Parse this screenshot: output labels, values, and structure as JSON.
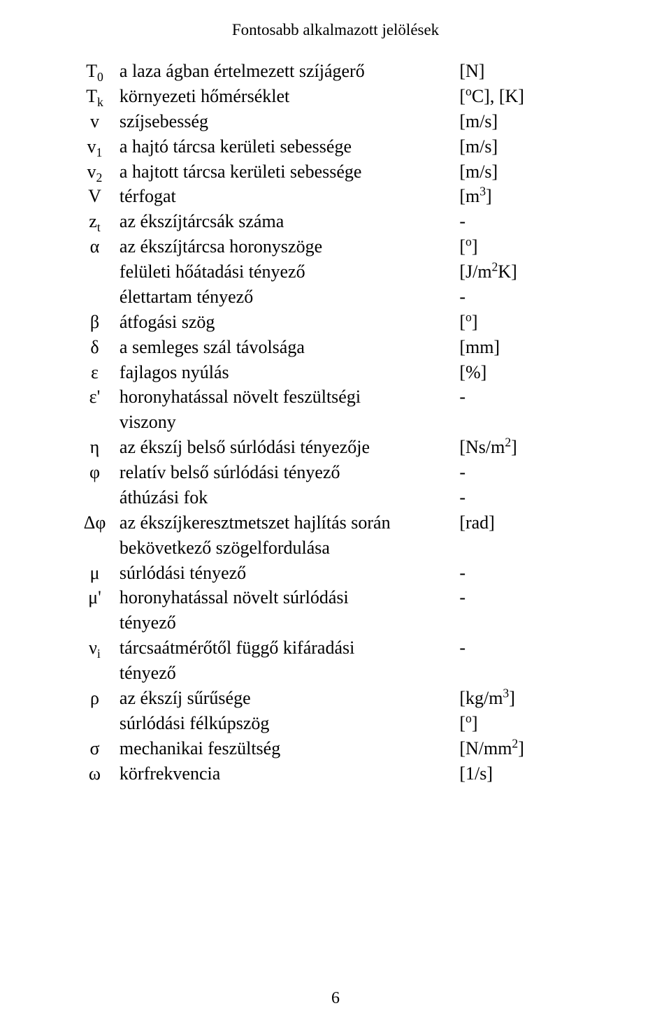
{
  "header": "Fontosabb alkalmazott jelölések",
  "page_number": "6",
  "rows": [
    {
      "sym_pre": "T",
      "sym_sub": "0",
      "sym_post": "",
      "desc": "a laza ágban értelmezett szíjágerő",
      "unit_html": "[N]"
    },
    {
      "sym_pre": "T",
      "sym_sub": "k",
      "sym_post": "",
      "desc": "környezeti hőmérséklet",
      "unit_html": "[<span class='sup'>o</span>C], [K]"
    },
    {
      "sym_pre": "v",
      "sym_sub": "",
      "sym_post": "",
      "desc": "szíjsebesség",
      "unit_html": "[m/s]"
    },
    {
      "sym_pre": "v",
      "sym_sub": "1",
      "sym_post": "",
      "desc": "a hajtó tárcsa kerületi sebessége",
      "unit_html": "[m/s]"
    },
    {
      "sym_pre": "v",
      "sym_sub": "2",
      "sym_post": "",
      "desc": "a hajtott tárcsa kerületi sebessége",
      "unit_html": "[m/s]"
    },
    {
      "sym_pre": "V",
      "sym_sub": "",
      "sym_post": "",
      "desc": "térfogat",
      "unit_html": "[m<span class='sup'>3</span>]"
    },
    {
      "sym_pre": "z",
      "sym_sub": "t",
      "sym_post": "",
      "desc": "az ékszíjtárcsák száma",
      "unit_html": "-"
    },
    {
      "sym_pre": "α",
      "sym_sub": "",
      "sym_post": "",
      "desc": "az ékszíjtárcsa horonyszöge",
      "unit_html": "[<span class='sup'>o</span>]"
    },
    {
      "sym_pre": "",
      "sym_sub": "",
      "sym_post": "",
      "desc": "felületi hőátadási tényező",
      "unit_html": "[J/m<span class='sup'>2</span>K]"
    },
    {
      "sym_pre": "",
      "sym_sub": "",
      "sym_post": "",
      "desc": "élettartam tényező",
      "unit_html": "-"
    },
    {
      "sym_pre": "β",
      "sym_sub": "",
      "sym_post": "",
      "desc": "átfogási szög",
      "unit_html": "[<span class='sup'>o</span>]"
    },
    {
      "sym_pre": "δ",
      "sym_sub": "",
      "sym_post": "",
      "desc": "a semleges szál távolsága",
      "unit_html": "[mm]"
    },
    {
      "sym_pre": "ε",
      "sym_sub": "",
      "sym_post": "",
      "desc": "fajlagos nyúlás",
      "unit_html": "[%]"
    },
    {
      "sym_pre": "ε'",
      "sym_sub": "",
      "sym_post": "",
      "desc": "horonyhatással növelt feszültségi",
      "unit_html": "-"
    },
    {
      "sym_pre": "",
      "sym_sub": "",
      "sym_post": "",
      "desc": "viszony",
      "unit_html": ""
    },
    {
      "sym_pre": "η",
      "sym_sub": "",
      "sym_post": "",
      "desc": "az ékszíj belső súrlódási tényezője",
      "unit_html": "[Ns/m<span class='sup'>2</span>]"
    },
    {
      "sym_pre": "φ",
      "sym_sub": "",
      "sym_post": "",
      "desc": "relatív belső súrlódási tényező",
      "unit_html": "-"
    },
    {
      "sym_pre": "",
      "sym_sub": "",
      "sym_post": "",
      "desc": "áthúzási fok",
      "unit_html": "-"
    },
    {
      "sym_pre": "Δφ",
      "sym_sub": "",
      "sym_post": "",
      "desc": "az ékszíjkeresztmetszet hajlítás során",
      "unit_html": "[rad]"
    },
    {
      "sym_pre": "",
      "sym_sub": "",
      "sym_post": "",
      "desc": "bekövetkező szögelfordulása",
      "unit_html": ""
    },
    {
      "sym_pre": "μ",
      "sym_sub": "",
      "sym_post": "",
      "desc": "súrlódási tényező",
      "unit_html": "-"
    },
    {
      "sym_pre": "μ'",
      "sym_sub": "",
      "sym_post": "",
      "desc": "horonyhatással növelt súrlódási",
      "unit_html": "-"
    },
    {
      "sym_pre": "",
      "sym_sub": "",
      "sym_post": "",
      "desc": "tényező",
      "unit_html": ""
    },
    {
      "sym_pre": "ν",
      "sym_sub": "i",
      "sym_post": "",
      "desc": "tárcsaátmérőtől függő kifáradási",
      "unit_html": "-"
    },
    {
      "sym_pre": "",
      "sym_sub": "",
      "sym_post": "",
      "desc": "tényező",
      "unit_html": ""
    },
    {
      "sym_pre": "ρ",
      "sym_sub": "",
      "sym_post": "",
      "desc": "az ékszíj sűrűsége",
      "unit_html": "[kg/m<span class='sup'>3</span>]"
    },
    {
      "sym_pre": "",
      "sym_sub": "",
      "sym_post": "",
      "desc": "súrlódási félkúpszög",
      "unit_html": "[<span class='sup'>o</span>]"
    },
    {
      "sym_pre": "σ",
      "sym_sub": "",
      "sym_post": "",
      "desc": "mechanikai feszültség",
      "unit_html": "[N/mm<span class='sup'>2</span>]"
    },
    {
      "sym_pre": "ω",
      "sym_sub": "",
      "sym_post": "",
      "desc": "körfrekvencia",
      "unit_html": "[1/s]"
    }
  ]
}
